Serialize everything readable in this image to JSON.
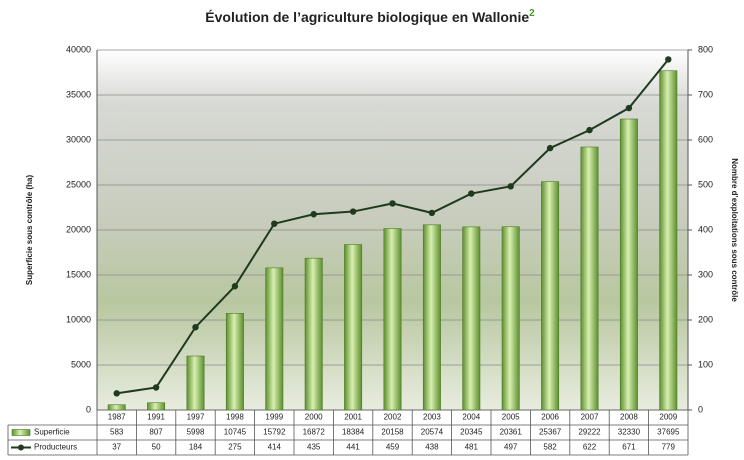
{
  "chart_data": {
    "type": "bar-line",
    "title": "Évolution de l’agriculture biologique en Wallonie",
    "title_superscript": "2",
    "y_label": "Superficie sous contrôle (ha)",
    "y2_label": "Nombre d’exploitations sous contrôle",
    "categories": [
      "1987",
      "1991",
      "1997",
      "1998",
      "1999",
      "2000",
      "2001",
      "2002",
      "2003",
      "2004",
      "2005",
      "2006",
      "2007",
      "2008",
      "2009"
    ],
    "series": [
      {
        "name": "Superficie",
        "type": "bar",
        "color": "#8fc060",
        "values": [
          583,
          807,
          5998,
          10745,
          15792,
          16872,
          18384,
          20158,
          20574,
          20345,
          20361,
          25367,
          29222,
          32330,
          37695
        ]
      },
      {
        "name": "Producteurs",
        "type": "line",
        "axis": "y2",
        "color": "#1f3a1f",
        "values": [
          37,
          50,
          184,
          275,
          414,
          435,
          441,
          459,
          438,
          481,
          497,
          582,
          622,
          671,
          779
        ]
      }
    ],
    "ylim": [
      0,
      40000
    ],
    "yticks": [
      0,
      5000,
      10000,
      15000,
      20000,
      25000,
      30000,
      35000,
      40000
    ],
    "y2lim": [
      0,
      800
    ],
    "y2ticks": [
      0,
      100,
      200,
      300,
      400,
      500,
      600,
      700,
      800
    ],
    "grid": true
  }
}
